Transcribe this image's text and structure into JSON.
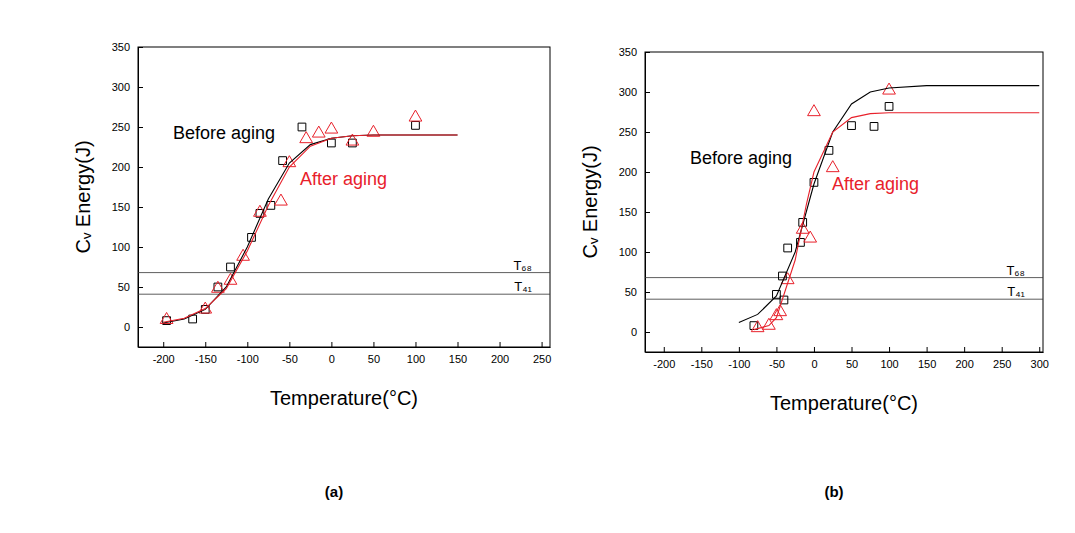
{
  "chart_data": [
    {
      "type": "scatter",
      "caption": "(a)",
      "x_label": "Temperature(°C)",
      "y_label": "Cᵥ Energy(J)",
      "xlim": [
        -230,
        260
      ],
      "ylim": [
        -25,
        350
      ],
      "xticks": [
        -200,
        -150,
        -100,
        -50,
        0,
        50,
        100,
        150,
        200,
        250
      ],
      "yticks": [
        0,
        50,
        100,
        150,
        200,
        250,
        300,
        350
      ],
      "reference_lines": [
        {
          "value": 68,
          "label": "T₆₈"
        },
        {
          "value": 41,
          "label": "T₄₁"
        }
      ],
      "series": [
        {
          "name": "Before aging",
          "color": "#000000",
          "marker": "square",
          "x": [
            -196,
            -165,
            -150,
            -135,
            -120,
            -95,
            -85,
            -72,
            -58,
            -35,
            0,
            25,
            100
          ],
          "values": [
            8,
            10,
            22,
            50,
            75,
            112,
            142,
            152,
            208,
            250,
            230,
            230,
            252
          ]
        },
        {
          "name": "After aging",
          "color": "#e8212b",
          "marker": "triangle",
          "x": [
            -196,
            -150,
            -135,
            -120,
            -105,
            -85,
            -60,
            -50,
            -30,
            -15,
            0,
            25,
            50,
            100
          ],
          "values": [
            9,
            22,
            48,
            58,
            88,
            143,
            157,
            205,
            235,
            242,
            247,
            232,
            243,
            262
          ]
        },
        {
          "type": "line",
          "color": "#000000",
          "line_style": "solid",
          "x": [
            -200,
            -175,
            -150,
            -125,
            -100,
            -75,
            -50,
            -25,
            0,
            25,
            50,
            75,
            100,
            125,
            150
          ],
          "values": [
            5,
            10,
            22,
            50,
            100,
            160,
            205,
            228,
            236,
            239,
            240,
            240,
            240,
            240,
            240
          ]
        },
        {
          "type": "line",
          "color": "#e8212b",
          "line_style": "solid",
          "x": [
            -200,
            -175,
            -150,
            -125,
            -100,
            -75,
            -50,
            -25,
            0,
            25,
            50,
            75,
            100,
            125,
            150
          ],
          "values": [
            6,
            11,
            23,
            48,
            95,
            152,
            200,
            226,
            236,
            239,
            240,
            240,
            240,
            240,
            240
          ]
        }
      ]
    },
    {
      "type": "scatter",
      "caption": "(b)",
      "x_label": "Temperature(°C)",
      "y_label": "Cᵥ Energy(J)",
      "xlim": [
        -225,
        305
      ],
      "ylim": [
        -25,
        350
      ],
      "xticks": [
        -200,
        -150,
        -100,
        -50,
        0,
        50,
        100,
        150,
        200,
        250,
        300
      ],
      "yticks": [
        0,
        50,
        100,
        150,
        200,
        250,
        300,
        350
      ],
      "reference_lines": [
        {
          "value": 68,
          "label": "T₆₈"
        },
        {
          "value": 41,
          "label": "T₄₁"
        }
      ],
      "series": [
        {
          "name": "Before aging",
          "color": "#000000",
          "marker": "square",
          "x": [
            -80,
            -50,
            -42,
            -40,
            -35,
            -18,
            -15,
            0,
            20,
            50,
            80,
            100
          ],
          "values": [
            8,
            47,
            70,
            40,
            105,
            112,
            137,
            187,
            227,
            258,
            257,
            282
          ]
        },
        {
          "name": "After aging",
          "color": "#e8212b",
          "marker": "triangle",
          "x": [
            -75,
            -60,
            -50,
            -45,
            -35,
            -15,
            -5,
            0,
            25,
            100
          ],
          "values": [
            5,
            8,
            20,
            25,
            65,
            128,
            117,
            275,
            205,
            302
          ]
        },
        {
          "type": "line",
          "color": "#000000",
          "line_style": "solid",
          "x": [
            -100,
            -75,
            -50,
            -25,
            0,
            25,
            50,
            75,
            100,
            150,
            200,
            250,
            300
          ],
          "values": [
            12,
            22,
            45,
            100,
            185,
            250,
            285,
            300,
            305,
            308,
            308,
            308,
            308
          ]
        },
        {
          "type": "line",
          "color": "#e8212b",
          "line_style": "solid",
          "x": [
            -80,
            -60,
            -50,
            -25,
            -10,
            0,
            25,
            50,
            75,
            100,
            150,
            200,
            250,
            300
          ],
          "values": [
            3,
            8,
            18,
            90,
            160,
            200,
            250,
            268,
            273,
            274,
            274,
            274,
            274,
            274
          ]
        }
      ]
    }
  ]
}
